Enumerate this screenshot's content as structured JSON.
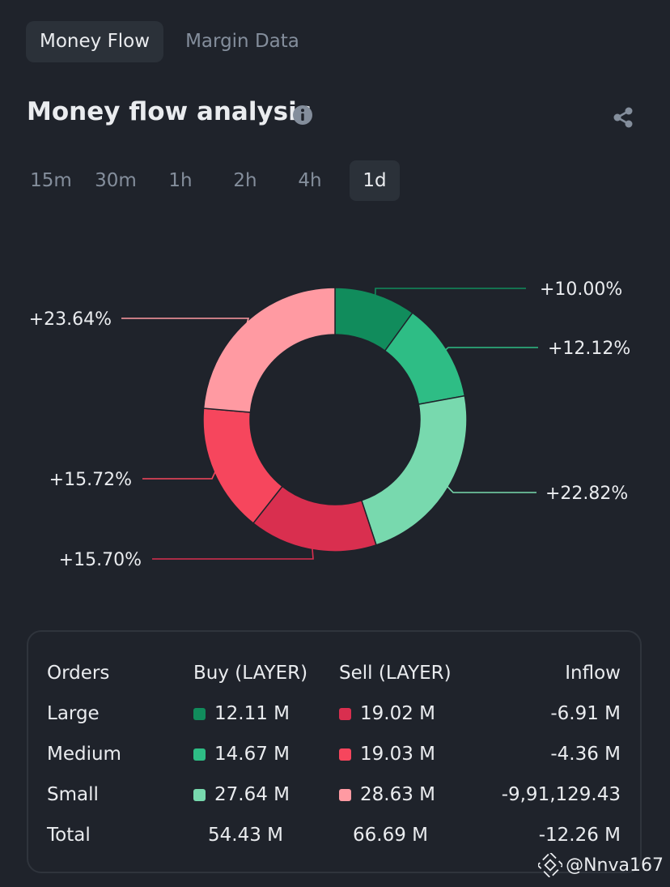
{
  "tabs": [
    {
      "label": "Money Flow",
      "active": true
    },
    {
      "label": "Margin Data",
      "active": false
    }
  ],
  "title": "Money flow analysis",
  "intervals": [
    {
      "label": "15m",
      "active": false
    },
    {
      "label": "30m",
      "active": false
    },
    {
      "label": "1h",
      "active": false
    },
    {
      "label": "2h",
      "active": false
    },
    {
      "label": "4h",
      "active": false
    },
    {
      "label": "1d",
      "active": true
    }
  ],
  "chart_data": {
    "type": "pie",
    "slices": [
      {
        "label": "+10.00%",
        "value": 10.0,
        "color": "#118c5c"
      },
      {
        "label": "+12.12%",
        "value": 12.12,
        "color": "#2ebd85"
      },
      {
        "label": "+22.82%",
        "value": 22.82,
        "color": "#78d9ae"
      },
      {
        "label": "+15.70%",
        "value": 15.7,
        "color": "#d92f4f"
      },
      {
        "label": "+15.72%",
        "value": 15.72,
        "color": "#f6465d"
      },
      {
        "label": "+23.64%",
        "value": 23.64,
        "color": "#ff9aa2"
      }
    ],
    "legend": "none",
    "grid": false
  },
  "table": {
    "headers": [
      "Orders",
      "Buy (LAYER)",
      "Sell (LAYER)",
      "Inflow"
    ],
    "rows": [
      {
        "name": "Large",
        "buy": "12.11 M",
        "sell": "19.02 M",
        "inflow": "-6.91 M",
        "buy_color": "#118c5c",
        "sell_color": "#d92f4f"
      },
      {
        "name": "Medium",
        "buy": "14.67 M",
        "sell": "19.03 M",
        "inflow": "-4.36 M",
        "buy_color": "#2ebd85",
        "sell_color": "#f6465d"
      },
      {
        "name": "Small",
        "buy": "27.64 M",
        "sell": "28.63 M",
        "inflow": "-9,91,129.43",
        "buy_color": "#78d9ae",
        "sell_color": "#ff9aa2"
      }
    ],
    "total": {
      "name": "Total",
      "buy": "54.43 M",
      "sell": "66.69 M",
      "inflow": "-12.26 M"
    }
  },
  "watermark": "@Nnva167"
}
